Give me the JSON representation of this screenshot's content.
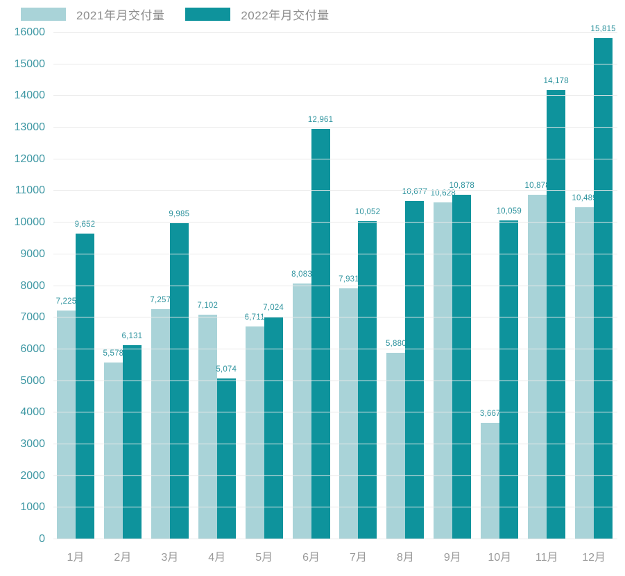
{
  "chart_data": {
    "type": "bar",
    "title": "",
    "categories": [
      "1月",
      "2月",
      "3月",
      "4月",
      "5月",
      "6月",
      "7月",
      "8月",
      "9月",
      "10月",
      "11月",
      "12月"
    ],
    "series": [
      {
        "name": "2021年月交付量",
        "color": "#a9d3d8",
        "values": [
          7225,
          5578,
          7257,
          7102,
          6711,
          8083,
          7931,
          5880,
          10628,
          3667,
          10878,
          10489
        ]
      },
      {
        "name": "2022年月交付量",
        "color": "#0e939c",
        "values": [
          9652,
          6131,
          9985,
          5074,
          7024,
          12961,
          10052,
          10677,
          10878,
          10059,
          14178,
          15815
        ]
      }
    ],
    "xlabel": "",
    "ylabel": "",
    "ylim": [
      0,
      16000
    ],
    "ytick_step": 1000,
    "grid": true,
    "legend_position": "top-left",
    "value_labels": true,
    "value_label_format": "thousands-comma"
  },
  "colors": {
    "background": "#ffffff",
    "gridline": "#e9e9e9",
    "y_tick_text": "#3f98a4",
    "x_tick_text": "#9a9a9a",
    "data_label_text": "#2e939e",
    "legend_text": "#8d8d8d"
  }
}
